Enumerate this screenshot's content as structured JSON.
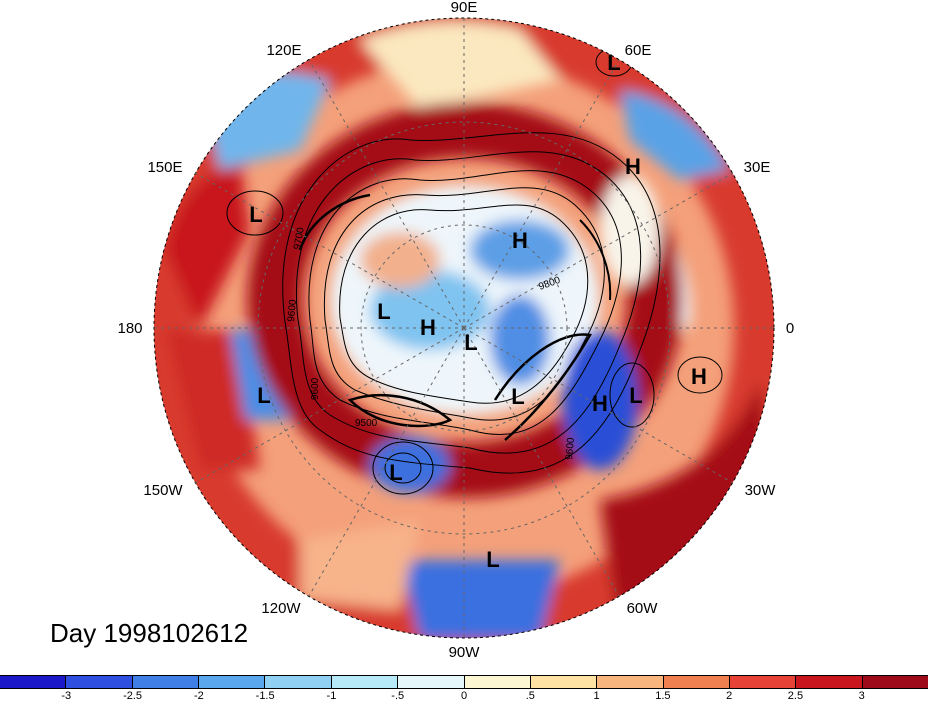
{
  "map": {
    "projection": "polar-stereographic-north",
    "longitude_labels": [
      {
        "key": "lon-90e",
        "text": "90E"
      },
      {
        "key": "lon-60e",
        "text": "60E"
      },
      {
        "key": "lon-120e",
        "text": "120E"
      },
      {
        "key": "lon-150e",
        "text": "150E"
      },
      {
        "key": "lon-30e",
        "text": "30E"
      },
      {
        "key": "lon-180",
        "text": "180"
      },
      {
        "key": "lon-0",
        "text": "0"
      },
      {
        "key": "lon-150w",
        "text": "150W"
      },
      {
        "key": "lon-30w",
        "text": "30W"
      },
      {
        "key": "lon-120w",
        "text": "120W"
      },
      {
        "key": "lon-60w",
        "text": "60W"
      },
      {
        "key": "lon-90w",
        "text": "90W"
      }
    ],
    "pressure_centers": [
      {
        "id": "L-60e",
        "text": "L"
      },
      {
        "id": "H-30e",
        "text": "H"
      },
      {
        "id": "L-150e",
        "text": "L"
      },
      {
        "id": "H-arctic-east",
        "text": "H"
      },
      {
        "id": "L-arctic-west",
        "text": "L"
      },
      {
        "id": "H-pole",
        "text": "H"
      },
      {
        "id": "L-pole",
        "text": "L"
      },
      {
        "id": "L-greenland",
        "text": "L"
      },
      {
        "id": "H-atlantic",
        "text": "H"
      },
      {
        "id": "L-atlantic",
        "text": "L"
      },
      {
        "id": "H-africa",
        "text": "H"
      },
      {
        "id": "L-pacific",
        "text": "L"
      },
      {
        "id": "L-nw-america",
        "text": "L"
      },
      {
        "id": "L-caribbean",
        "text": "L"
      }
    ],
    "contour_labels": [
      "9700",
      "9800",
      "9600",
      "9500",
      "9600",
      "9600"
    ],
    "contour_level_units": "geopotential height contours",
    "field_colors": {
      "strong_positive": "#a50f15",
      "positive": "#e83a30",
      "weak_positive": "#f6a37e",
      "near_zero_pos": "#fdf0c8",
      "near_zero_neg": "#dff2fb",
      "weak_negative": "#8fd0f3",
      "negative": "#3f8be0",
      "strong_negative": "#1a2bc8"
    }
  },
  "day_label": "Day 1998102612",
  "colorbar": {
    "colors": [
      "#1a18c9",
      "#2e4fe0",
      "#3f7fe6",
      "#5aa7ee",
      "#8fd0f3",
      "#b7eaf9",
      "#e6f7fc",
      "#fdf6d2",
      "#fde2a4",
      "#f8b57e",
      "#f08050",
      "#e64236",
      "#c9161e",
      "#9e0a1a"
    ],
    "tick_labels": [
      "-3",
      "-2.5",
      "-2",
      "-1.5",
      "-1",
      "-.5",
      "0",
      ".5",
      "1",
      "1.5",
      "2",
      "2.5",
      "3"
    ]
  }
}
